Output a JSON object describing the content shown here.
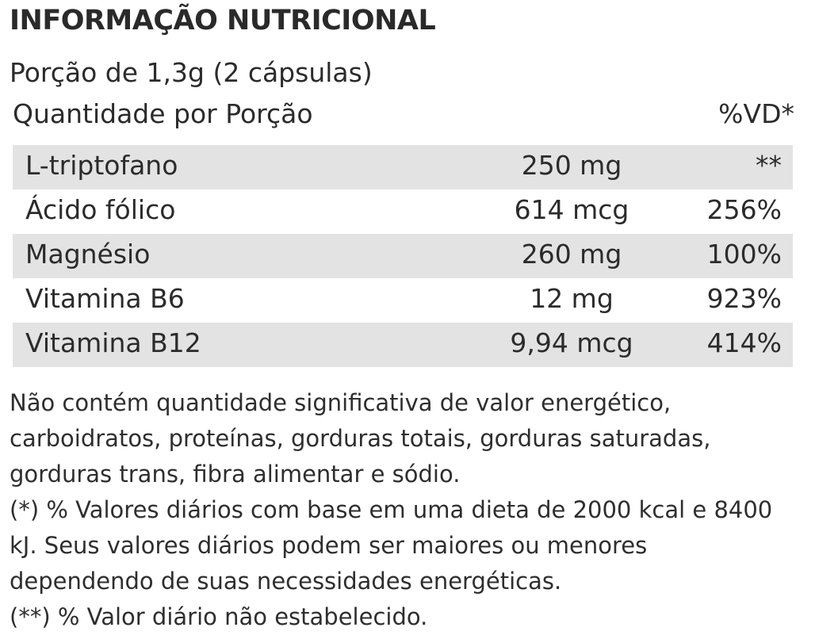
{
  "title": "INFORMAÇÃO NUTRICIONAL",
  "serving": "Porção de 1,3g (2 cápsulas)",
  "quantity_header": {
    "label": "Quantidade por Porção",
    "dv_label": "%VD*"
  },
  "rows": [
    {
      "name": "L-triptofano",
      "amount": "250 mg",
      "dv": "**"
    },
    {
      "name": "Ácido fólico",
      "amount": "614 mcg",
      "dv": "256%"
    },
    {
      "name": "Magnésio",
      "amount": "260 mg",
      "dv": "100%"
    },
    {
      "name": "Vitamina B6",
      "amount": "12 mg",
      "dv": "923%"
    },
    {
      "name": "Vitamina B12",
      "amount": "9,94 mcg",
      "dv": "414%"
    }
  ],
  "notes": [
    "Não contém quantidade significativa de valor energético,",
    "carboidratos, proteínas, gorduras totais, gorduras saturadas,",
    "gorduras trans, fibra alimentar e sódio.",
    "(*) % Valores diários com base em uma dieta de 2000 kcal e 8400",
    "kJ. Seus valores diários podem ser maiores ou menores",
    "dependendo de suas necessidades energéticas.",
    "(**) % Valor diário não estabelecido."
  ],
  "colors": {
    "row_shade": "#e3e3e3",
    "text": "#2b2b2b"
  }
}
